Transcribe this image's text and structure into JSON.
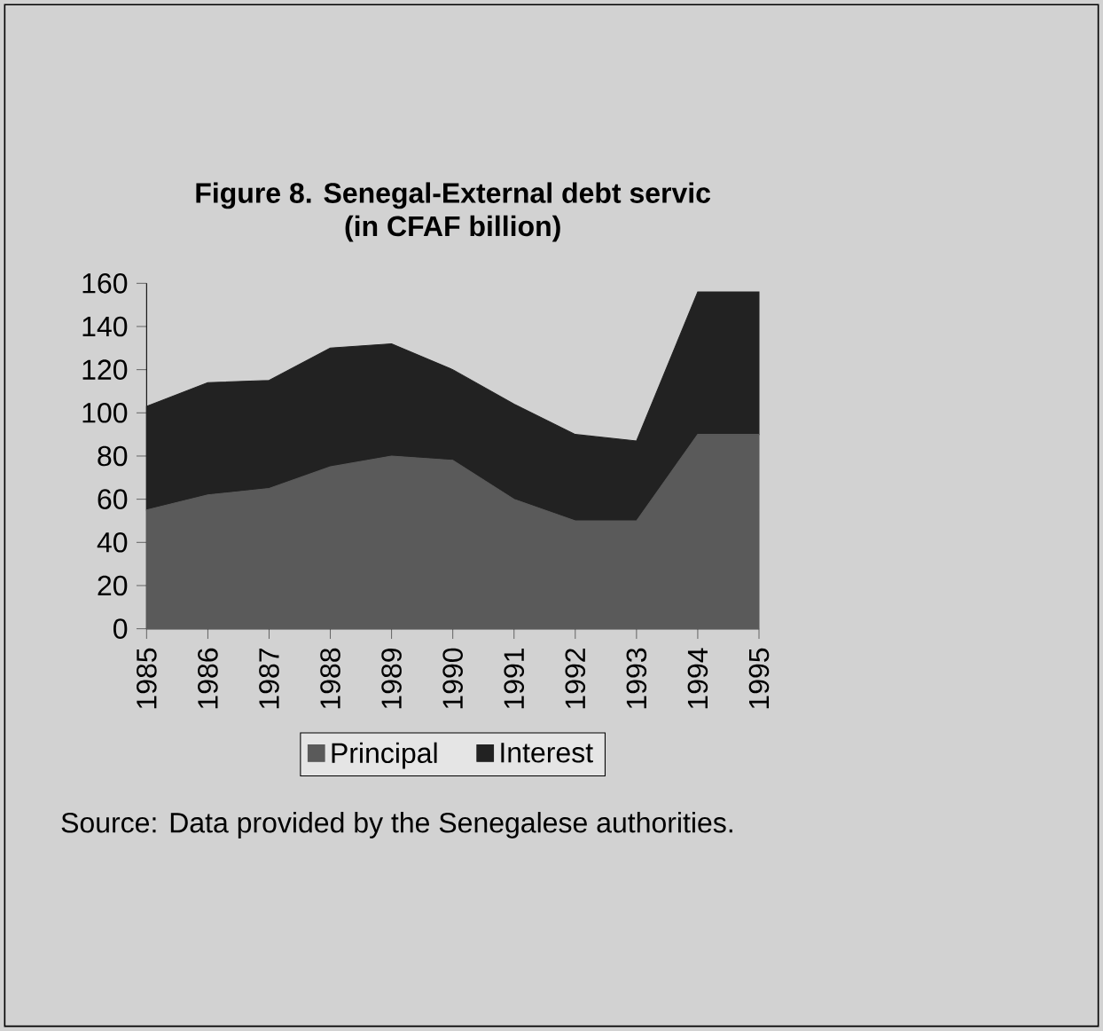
{
  "chart_data": {
    "type": "area",
    "stacked": true,
    "title": "Figure 8. Senegal-External debt servic",
    "subtitle": "(in CFAF billion)",
    "categories": [
      "1985",
      "1986",
      "1987",
      "1988",
      "1989",
      "1990",
      "1991",
      "1992",
      "1993",
      "1994",
      "1995"
    ],
    "series": [
      {
        "name": "Principal",
        "color": "#5a5a5a",
        "values": [
          55,
          62,
          65,
          75,
          80,
          78,
          60,
          50,
          50,
          90,
          90
        ]
      },
      {
        "name": "Interest",
        "color": "#222222",
        "values": [
          48,
          52,
          50,
          55,
          52,
          42,
          44,
          40,
          37,
          66,
          66
        ]
      }
    ],
    "ylim": [
      0,
      160
    ],
    "yticks": [
      0,
      20,
      40,
      60,
      80,
      100,
      120,
      140,
      160
    ],
    "legend": "bottom",
    "annotations": [
      "Source: Data provided by the Senegalese authorities."
    ]
  }
}
